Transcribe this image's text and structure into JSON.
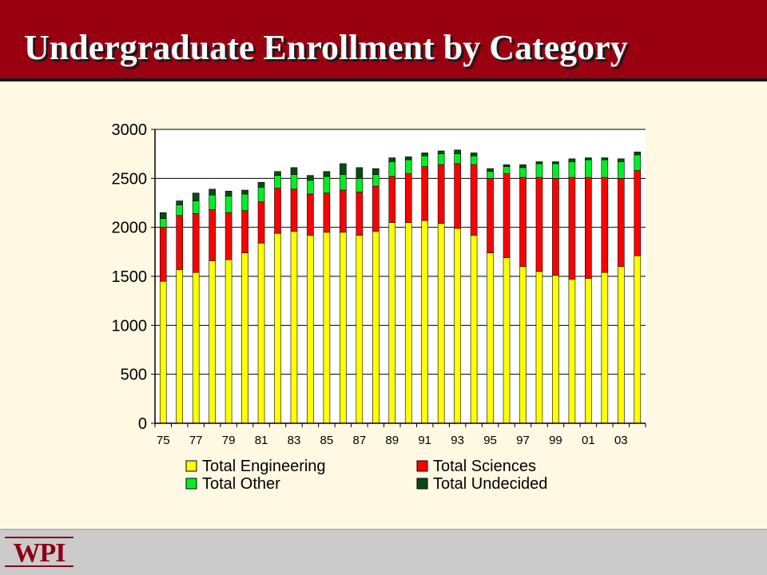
{
  "slide": {
    "title": "Undergraduate Enrollment by Category",
    "logo_text": "WPI"
  },
  "colors": {
    "title_bar": "#990010",
    "background": "#fff8e3",
    "footer": "#cbcbcb",
    "engineering": "#ffff00",
    "sciences": "#ff0000",
    "other": "#00ee22",
    "undecided": "#0b4a12"
  },
  "chart_data": {
    "type": "bar",
    "stacked": true,
    "title": "",
    "xlabel": "",
    "ylabel": "",
    "ylim": [
      0,
      3000
    ],
    "yticks": [
      0,
      500,
      1000,
      1500,
      2000,
      2500,
      3000
    ],
    "grid": true,
    "legend_position": "bottom",
    "categories": [
      "75",
      "76",
      "77",
      "78",
      "79",
      "80",
      "81",
      "82",
      "83",
      "84",
      "85",
      "86",
      "87",
      "88",
      "89",
      "90",
      "91",
      "92",
      "93",
      "94",
      "95",
      "96",
      "97",
      "98",
      "99",
      "00",
      "01",
      "02",
      "03",
      "04"
    ],
    "category_labels_shown": [
      "75",
      "77",
      "79",
      "81",
      "83",
      "85",
      "87",
      "89",
      "91",
      "93",
      "95",
      "97",
      "99",
      "01",
      "03"
    ],
    "series": [
      {
        "name": "Total Engineering",
        "color": "#ffff00",
        "values": [
          1450,
          1570,
          1540,
          1660,
          1670,
          1740,
          1840,
          1940,
          1960,
          1920,
          1950,
          1950,
          1920,
          1960,
          2050,
          2050,
          2070,
          2040,
          1990,
          1920,
          1740,
          1690,
          1600,
          1550,
          1510,
          1470,
          1480,
          1540,
          1600,
          1710
        ]
      },
      {
        "name": "Total Sciences",
        "color": "#ff0000",
        "values": [
          550,
          550,
          600,
          520,
          480,
          430,
          420,
          460,
          430,
          420,
          400,
          430,
          440,
          460,
          470,
          500,
          550,
          600,
          660,
          720,
          760,
          860,
          910,
          960,
          990,
          1040,
          1030,
          970,
          900,
          870
        ]
      },
      {
        "name": "Total Other",
        "color": "#00ee22",
        "values": [
          90,
          110,
          130,
          150,
          170,
          170,
          150,
          130,
          150,
          140,
          170,
          160,
          140,
          120,
          150,
          140,
          110,
          110,
          100,
          90,
          70,
          70,
          100,
          140,
          150,
          160,
          180,
          180,
          170,
          160
        ]
      },
      {
        "name": "Total Undecided",
        "color": "#0b4a12",
        "values": [
          60,
          40,
          80,
          60,
          50,
          40,
          50,
          40,
          70,
          50,
          50,
          110,
          110,
          60,
          40,
          30,
          30,
          30,
          40,
          30,
          30,
          20,
          30,
          20,
          20,
          30,
          20,
          20,
          30,
          30
        ]
      }
    ]
  }
}
